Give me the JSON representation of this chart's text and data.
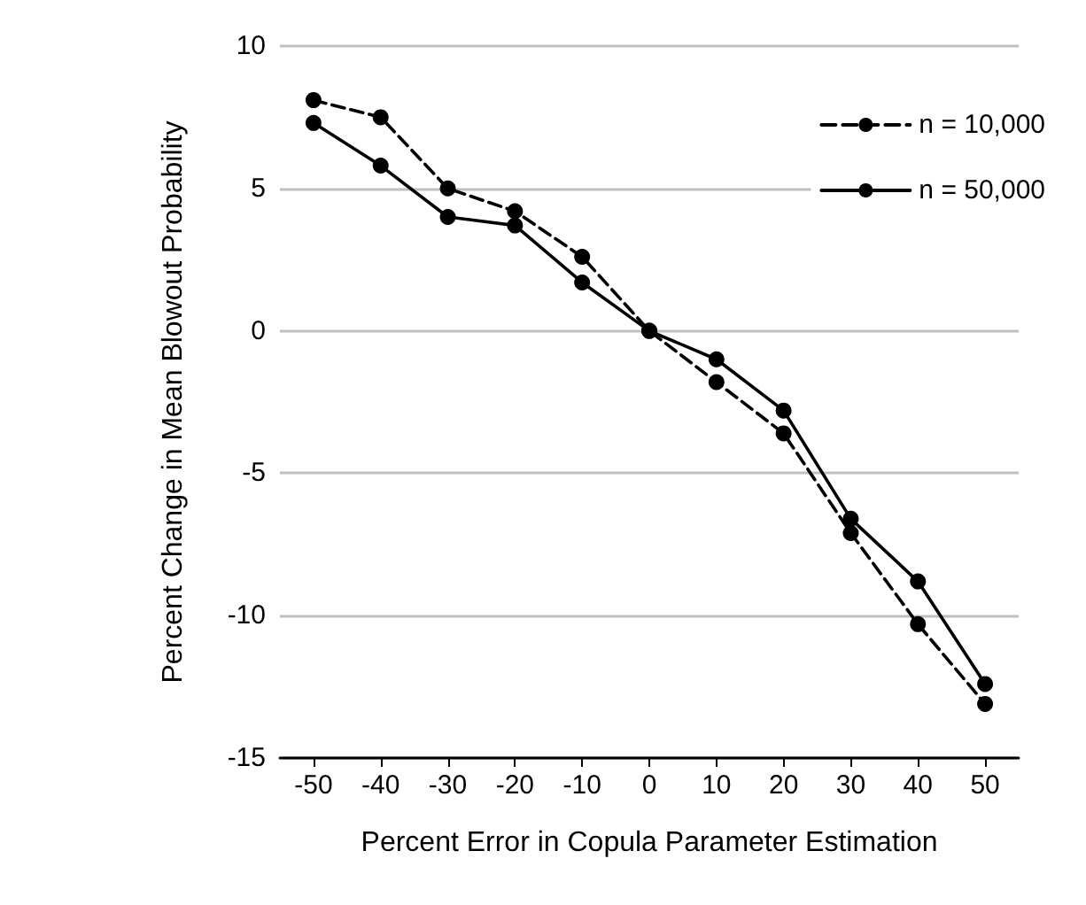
{
  "chart_data": {
    "type": "line",
    "xlabel": "Percent Error in Copula Parameter Estimation",
    "ylabel": "Percent Change in Mean Blowout Probability",
    "categories": [
      "-50",
      "-40",
      "-30",
      "-20",
      "-10",
      "0",
      "10",
      "20",
      "30",
      "40",
      "50"
    ],
    "series": [
      {
        "name": "n = 10,000",
        "color": "#000000",
        "line_style": "dashed",
        "values": [
          8.1,
          7.5,
          5.0,
          4.2,
          2.6,
          0,
          -1.8,
          -3.6,
          -7.1,
          -10.3,
          -13.1
        ]
      },
      {
        "name": "n = 50,000",
        "color": "#000000",
        "line_style": "solid",
        "values": [
          7.3,
          5.8,
          4.0,
          3.7,
          1.7,
          0,
          -1.0,
          -2.8,
          -6.6,
          -8.8,
          -12.4
        ]
      }
    ],
    "ylim": [
      -15,
      10
    ],
    "yticks": [
      -15,
      -10,
      -5,
      0,
      5,
      10
    ],
    "grid": "y",
    "legend": "top right",
    "marker": "circle"
  }
}
